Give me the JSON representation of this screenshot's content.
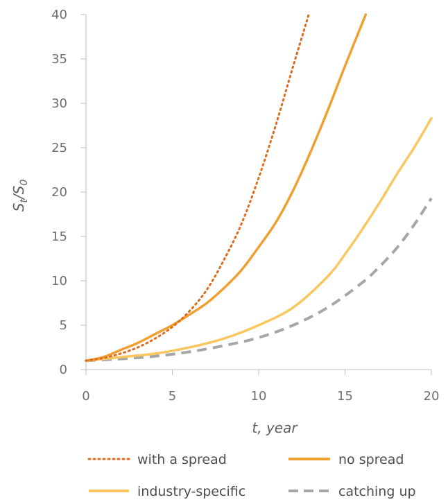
{
  "chart_data": {
    "type": "line",
    "xlabel": "t, year",
    "ylabel": {
      "main": "S",
      "sub1": "t",
      "sep": "/S",
      "sub2": "0"
    },
    "xlim": [
      0,
      20
    ],
    "ylim": [
      0,
      40
    ],
    "x_ticks": [
      "0",
      "5",
      "10",
      "15",
      "20"
    ],
    "y_ticks": [
      "0",
      "5",
      "10",
      "15",
      "20",
      "25",
      "30",
      "35",
      "40"
    ],
    "grid": false,
    "legend_placement": "bottom",
    "series": [
      {
        "name": "with a spread",
        "style": "dotted",
        "color": "#E06A1B",
        "x": [
          0,
          1,
          2,
          3,
          4,
          5,
          6,
          7,
          8,
          9,
          10,
          11,
          12,
          12.9
        ],
        "y": [
          1.0,
          1.3,
          1.8,
          2.5,
          3.5,
          4.8,
          6.6,
          9.0,
          12.4,
          16.4,
          21.6,
          27.6,
          34.2,
          40.0
        ]
      },
      {
        "name": "no spread",
        "style": "solid",
        "color": "#F0A030",
        "x": [
          0,
          1,
          2,
          3,
          4,
          5,
          6,
          7,
          8,
          9,
          10,
          11,
          12,
          13,
          14,
          15,
          16.2
        ],
        "y": [
          1.0,
          1.4,
          2.2,
          3.0,
          4.0,
          5.0,
          6.2,
          7.5,
          9.2,
          11.2,
          13.8,
          16.6,
          20.2,
          24.5,
          29.2,
          34.2,
          40.0
        ]
      },
      {
        "name": "industry-specific",
        "style": "solid",
        "color": "#F9C65F",
        "x": [
          0,
          2,
          4,
          6,
          8,
          10,
          12,
          14,
          15,
          16,
          17,
          18,
          19,
          20
        ],
        "y": [
          1.0,
          1.4,
          1.8,
          2.5,
          3.5,
          5.0,
          7.0,
          10.5,
          13.0,
          15.8,
          18.8,
          22.0,
          25.0,
          28.3
        ]
      },
      {
        "name": "catching up",
        "style": "dashed",
        "color": "#A6A6A6",
        "x": [
          0,
          2,
          4,
          6,
          8,
          10,
          12,
          14,
          16,
          17,
          18,
          19,
          20
        ],
        "y": [
          1.0,
          1.2,
          1.5,
          2.0,
          2.7,
          3.6,
          5.0,
          7.0,
          9.8,
          11.6,
          13.7,
          16.3,
          19.3
        ]
      }
    ]
  }
}
